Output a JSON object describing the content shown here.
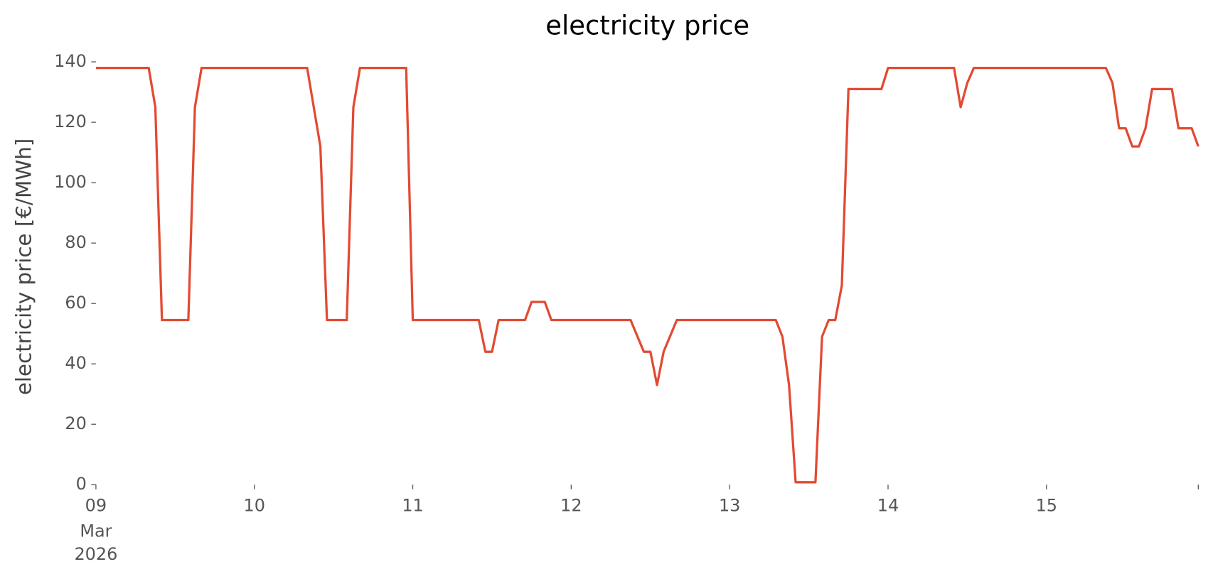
{
  "chart_data": {
    "type": "line",
    "title": "electricity price",
    "ylabel": "electricity price [€/MWh]",
    "x": [
      "2026-03-09 00:00",
      "2026-03-09 08:00",
      "2026-03-09 09:00",
      "2026-03-09 10:00",
      "2026-03-09 14:00",
      "2026-03-09 15:00",
      "2026-03-09 16:00",
      "2026-03-10 08:00",
      "2026-03-10 10:00",
      "2026-03-10 11:00",
      "2026-03-10 14:00",
      "2026-03-10 15:00",
      "2026-03-10 16:00",
      "2026-03-10 23:00",
      "2026-03-11 00:00",
      "2026-03-11 10:00",
      "2026-03-11 11:00",
      "2026-03-11 12:00",
      "2026-03-11 13:00",
      "2026-03-11 17:00",
      "2026-03-11 18:00",
      "2026-03-11 20:00",
      "2026-03-11 21:00",
      "2026-03-12 09:00",
      "2026-03-12 11:00",
      "2026-03-12 12:00",
      "2026-03-12 13:00",
      "2026-03-12 14:00",
      "2026-03-12 16:00",
      "2026-03-13 07:00",
      "2026-03-13 08:00",
      "2026-03-13 09:00",
      "2026-03-13 10:00",
      "2026-03-13 13:00",
      "2026-03-13 14:00",
      "2026-03-13 15:00",
      "2026-03-13 16:00",
      "2026-03-13 17:00",
      "2026-03-13 18:00",
      "2026-03-13 23:00",
      "2026-03-14 00:00",
      "2026-03-14 10:00",
      "2026-03-14 11:00",
      "2026-03-14 12:00",
      "2026-03-14 13:00",
      "2026-03-15 09:00",
      "2026-03-15 10:00",
      "2026-03-15 11:00",
      "2026-03-15 12:00",
      "2026-03-15 13:00",
      "2026-03-15 14:00",
      "2026-03-15 15:00",
      "2026-03-15 16:00",
      "2026-03-15 19:00",
      "2026-03-15 20:00",
      "2026-03-15 22:00",
      "2026-03-15 23:00"
    ],
    "series": [
      {
        "name": "electricity price",
        "color": "#e24a33",
        "values": [
          138,
          138,
          125,
          54.5,
          54.5,
          125,
          138,
          138,
          112,
          54.5,
          54.5,
          125,
          138,
          138,
          54.5,
          54.5,
          44,
          44,
          54.5,
          54.5,
          60.5,
          60.5,
          54.5,
          54.5,
          44,
          44,
          33,
          44,
          54.5,
          54.5,
          49,
          33,
          0.8,
          0.8,
          49,
          54.5,
          54.5,
          66,
          131,
          131,
          138,
          138,
          125,
          133,
          138,
          138,
          133,
          118,
          118,
          112,
          112,
          118,
          131,
          131,
          118,
          118,
          112
        ]
      }
    ],
    "xlim": [
      "2026-03-09 00:00",
      "2026-03-15 23:00"
    ],
    "xticks": [
      {
        "value": "2026-03-09 00:00",
        "label": "09",
        "sublabels": [
          "Mar",
          "2026"
        ]
      },
      {
        "value": "2026-03-10 00:00",
        "label": "10"
      },
      {
        "value": "2026-03-11 00:00",
        "label": "11"
      },
      {
        "value": "2026-03-12 00:00",
        "label": "12"
      },
      {
        "value": "2026-03-13 00:00",
        "label": "13"
      },
      {
        "value": "2026-03-14 00:00",
        "label": "14"
      },
      {
        "value": "2026-03-15 00:00",
        "label": "15"
      },
      {
        "value": "2026-03-15 23:00",
        "label": null
      }
    ],
    "ylim": [
      0,
      140
    ],
    "yticks": [
      0,
      20,
      40,
      60,
      80,
      100,
      120,
      140
    ],
    "grid": false
  }
}
